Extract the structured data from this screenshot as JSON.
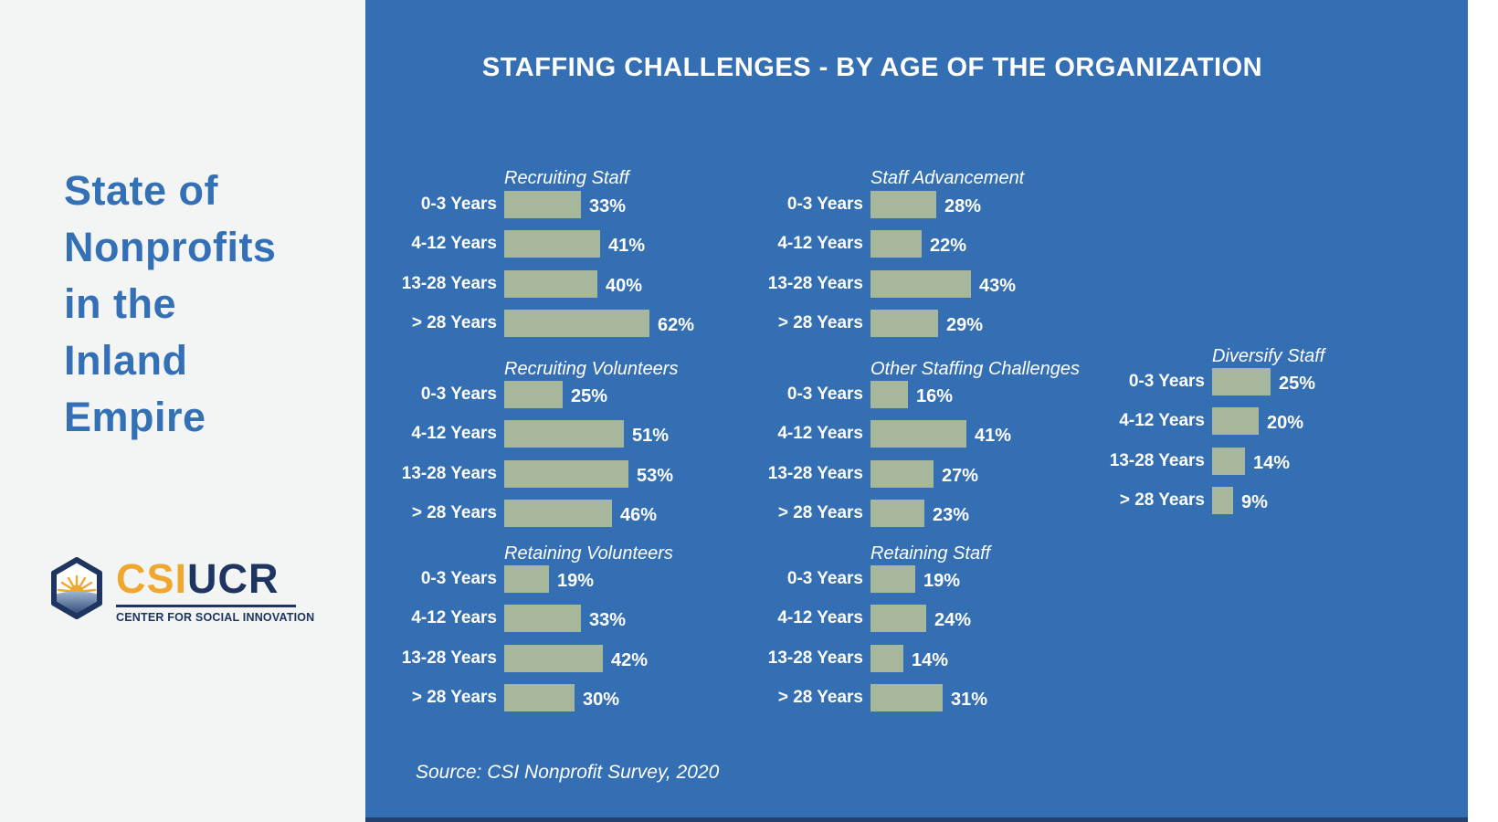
{
  "header": {
    "title": "STAFFING CHALLENGES - BY AGE OF THE ORGANIZATION"
  },
  "sidebar": {
    "title": "State of\nNonprofits\nin the\nInland\nEmpire",
    "logo": {
      "icon": "hexagon-sunrise-icon",
      "csi": "CSI",
      "ucr": "UCR",
      "subtitle": "CENTER FOR SOCIAL INNOVATION"
    }
  },
  "footer": {
    "source": "Source: CSI Nonprofit Survey, 2020"
  },
  "colors": {
    "panel_blue": "#346EB3",
    "bar_green": "#A6B79C",
    "navy": "#1E3461",
    "navy_strip": "#24406E",
    "gold": "#F0A730",
    "sidebar_bg": "#F3F5F4",
    "title_blue": "#3470B5",
    "text_white": "#FFFFFF"
  },
  "chart_data": {
    "type": "bar",
    "orientation": "horizontal",
    "unit": "%",
    "title": "STAFFING CHALLENGES - BY AGE OF THE ORGANIZATION",
    "source": "Source: CSI Nonprofit Survey, 2020",
    "xlim": [
      0,
      100
    ],
    "grid": false,
    "legend": "none",
    "categories": [
      "0-3 Years",
      "4-12 Years",
      "13-28 Years",
      "> 28 Years"
    ],
    "series": [
      {
        "name": "Recruiting Staff",
        "values": [
          33,
          41,
          40,
          62
        ]
      },
      {
        "name": "Staff Advancement",
        "values": [
          28,
          22,
          43,
          29
        ]
      },
      {
        "name": "Recruiting Volunteers",
        "values": [
          25,
          51,
          53,
          46
        ]
      },
      {
        "name": "Other Staffing Challenges",
        "values": [
          16,
          41,
          27,
          23
        ]
      },
      {
        "name": "Diversify Staff",
        "values": [
          25,
          20,
          14,
          9
        ]
      },
      {
        "name": "Retaining Volunteers",
        "values": [
          19,
          33,
          42,
          30
        ]
      },
      {
        "name": "Retaining Staff",
        "values": [
          19,
          24,
          14,
          31
        ]
      }
    ]
  }
}
